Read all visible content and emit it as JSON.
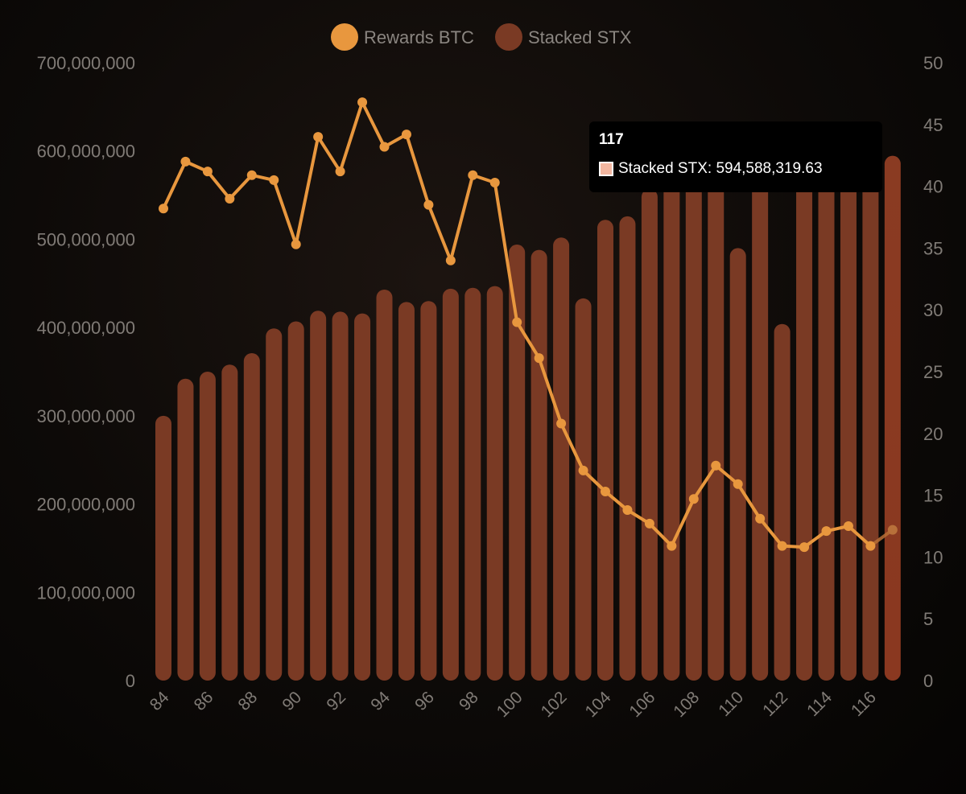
{
  "chart_data": {
    "type": "bar",
    "title": "",
    "legend": [
      {
        "name": "Rewards BTC",
        "color": "#e8973e"
      },
      {
        "name": "Stacked STX",
        "color": "#7a3a24"
      }
    ],
    "legend_position": "top-center",
    "x_ticks": [
      "84",
      "86",
      "88",
      "90",
      "92",
      "94",
      "96",
      "98",
      "100",
      "102",
      "104",
      "106",
      "108",
      "110",
      "112",
      "114",
      "116"
    ],
    "y_left": {
      "min": 0,
      "max": 700000000,
      "ticks": [
        "0",
        "100,000,000",
        "200,000,000",
        "300,000,000",
        "400,000,000",
        "500,000,000",
        "600,000,000",
        "700,000,000"
      ]
    },
    "y_right": {
      "min": 0,
      "max": 50,
      "ticks": [
        "0",
        "5",
        "10",
        "15",
        "20",
        "25",
        "30",
        "35",
        "40",
        "45",
        "50"
      ]
    },
    "categories": [
      84,
      85,
      86,
      87,
      88,
      89,
      90,
      91,
      92,
      93,
      94,
      95,
      96,
      97,
      98,
      99,
      100,
      101,
      102,
      103,
      104,
      105,
      106,
      107,
      108,
      109,
      110,
      111,
      112,
      113,
      114,
      115,
      116,
      117
    ],
    "series": [
      {
        "name": "Stacked STX",
        "type": "bar",
        "axis": "left",
        "values": [
          300000000,
          342000000,
          350000000,
          358000000,
          371000000,
          399000000,
          407000000,
          419000000,
          418000000,
          416000000,
          443000000,
          429000000,
          430000000,
          444000000,
          445000000,
          447000000,
          494000000,
          488000000,
          502000000,
          433000000,
          522000000,
          526000000,
          557000000,
          593000000,
          602000000,
          593000000,
          490000000,
          598000000,
          404000000,
          600000000,
          601000000,
          599000000,
          598000000,
          594588319.63
        ]
      },
      {
        "name": "Rewards BTC",
        "type": "line",
        "axis": "right",
        "values": [
          38.2,
          42.0,
          41.2,
          39.0,
          40.9,
          40.5,
          35.3,
          44.0,
          41.2,
          46.8,
          43.2,
          44.2,
          38.5,
          34.0,
          40.9,
          40.3,
          29.0,
          26.1,
          20.8,
          17.0,
          15.3,
          13.8,
          12.7,
          10.9,
          14.7,
          17.4,
          15.9,
          13.1,
          10.9,
          10.8,
          12.1,
          12.5,
          10.9,
          12.2
        ]
      }
    ],
    "tooltip": {
      "title": "117",
      "label": "Stacked STX: 594,588,319.63"
    }
  }
}
